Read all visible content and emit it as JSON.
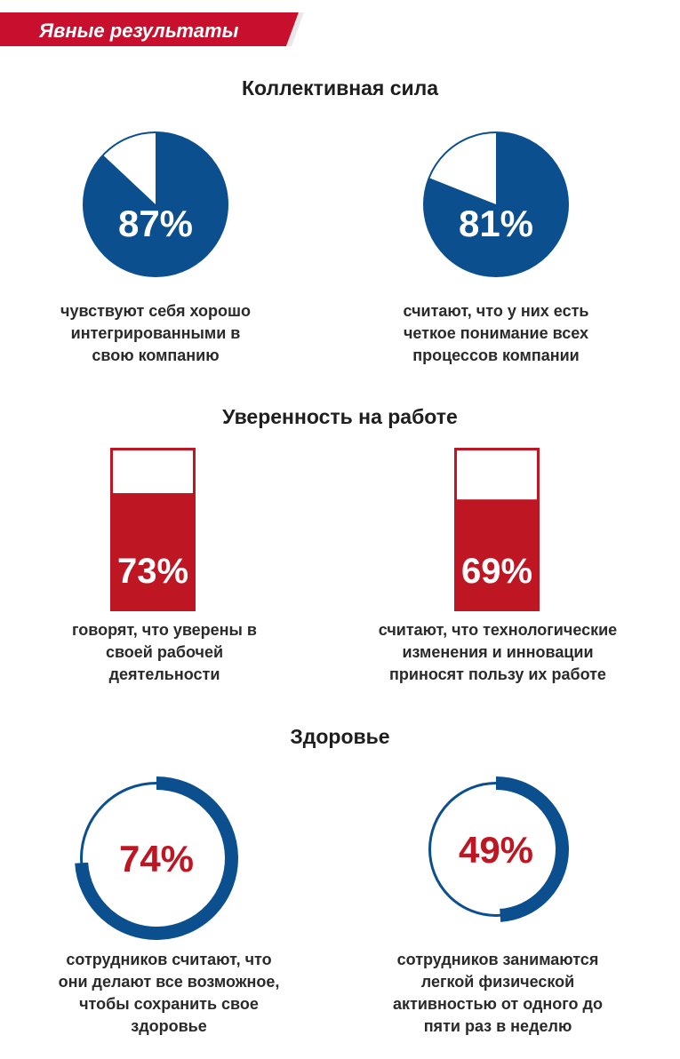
{
  "header": {
    "banner_label": "Явные результаты"
  },
  "colors": {
    "blue": "#0b4f8f",
    "red": "#be1622",
    "banner_red": "#c8102e"
  },
  "sections": [
    {
      "title": "Коллективная сила"
    },
    {
      "title": "Уверенность на работе"
    },
    {
      "title": "Здоровье"
    }
  ],
  "chart_data": [
    {
      "type": "pie",
      "section": "Коллективная сила",
      "value": 87,
      "value_label": "87%",
      "caption_lines": [
        "чувствуют себя хорошо",
        "интегрированными в",
        "свою компанию"
      ]
    },
    {
      "type": "pie",
      "section": "Коллективная сила",
      "value": 81,
      "value_label": "81%",
      "caption_lines": [
        "считают, что у них есть",
        "четкое понимание всех",
        "процессов компании"
      ]
    },
    {
      "type": "bar",
      "section": "Уверенность на работе",
      "value": 73,
      "value_label": "73%",
      "caption_lines": [
        "говорят, что уверены в",
        "своей рабочей",
        "деятельности"
      ]
    },
    {
      "type": "bar",
      "section": "Уверенность на работе",
      "value": 69,
      "value_label": "69%",
      "caption_lines": [
        "считают, что технологические",
        "изменения и инновации",
        "приносят пользу их работе"
      ]
    },
    {
      "type": "ring",
      "section": "Здоровье",
      "value": 74,
      "value_label": "74%",
      "caption_lines": [
        "сотрудников считают, что",
        "они делают все возможное,",
        "чтобы сохранить свое",
        "здоровье"
      ]
    },
    {
      "type": "ring",
      "section": "Здоровье",
      "value": 49,
      "value_label": "49%",
      "caption_lines": [
        "сотрудников занимаются",
        "легкой физической",
        "активностью от одного до",
        "пяти раз в неделю"
      ]
    }
  ]
}
